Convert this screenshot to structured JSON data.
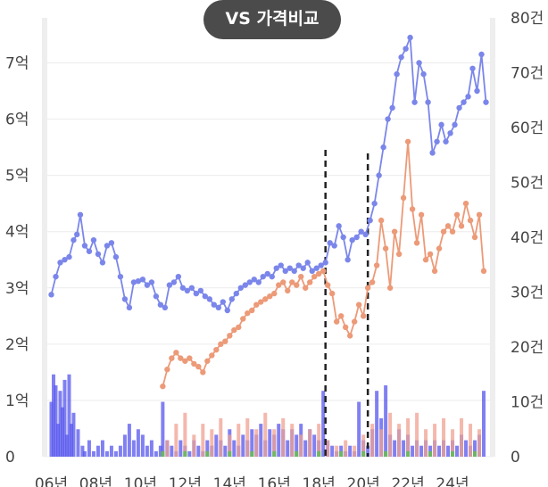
{
  "chart_data": {
    "type": "line",
    "title": "VS 가격비교",
    "x_tick_labels": [
      "06년",
      "08년",
      "10년",
      "12년",
      "14년",
      "16년",
      "18년",
      "20년",
      "22년",
      "24년"
    ],
    "y_left_tick_labels": [
      "0",
      "1억",
      "2억",
      "3억",
      "4억",
      "5억",
      "6억",
      "7억"
    ],
    "y_right_tick_labels": [
      "0",
      "10건",
      "20건",
      "30건",
      "40건",
      "50건",
      "60건",
      "70건",
      "80건"
    ],
    "y_left_range": [
      0,
      7.8
    ],
    "y_right_range": [
      0,
      80
    ],
    "x_range": [
      2005.7,
      2025.8
    ],
    "grid": true,
    "colors": {
      "blue": "#7b86ea",
      "orange": "#ec9a78",
      "bar_blue": "#5555ee",
      "bar_orange": "#f0a090",
      "bar_green": "#66bb55",
      "marker": "#222222"
    },
    "vertical_markers": [
      2018.3,
      2020.2
    ],
    "series": [
      {
        "kind": "line",
        "color_key": "blue",
        "values": [
          [
            2006.0,
            2.88
          ],
          [
            2006.2,
            3.2
          ],
          [
            2006.4,
            3.45
          ],
          [
            2006.6,
            3.5
          ],
          [
            2006.8,
            3.55
          ],
          [
            2007.0,
            3.85
          ],
          [
            2007.15,
            3.95
          ],
          [
            2007.3,
            4.3
          ],
          [
            2007.5,
            3.75
          ],
          [
            2007.7,
            3.65
          ],
          [
            2007.9,
            3.85
          ],
          [
            2008.1,
            3.6
          ],
          [
            2008.3,
            3.45
          ],
          [
            2008.5,
            3.75
          ],
          [
            2008.7,
            3.8
          ],
          [
            2008.9,
            3.55
          ],
          [
            2009.1,
            3.2
          ],
          [
            2009.3,
            2.8
          ],
          [
            2009.5,
            2.65
          ],
          [
            2009.7,
            3.1
          ],
          [
            2009.9,
            3.12
          ],
          [
            2010.1,
            3.15
          ],
          [
            2010.3,
            3.05
          ],
          [
            2010.5,
            3.1
          ],
          [
            2010.7,
            2.85
          ],
          [
            2010.9,
            2.7
          ],
          [
            2011.1,
            2.65
          ],
          [
            2011.3,
            3.05
          ],
          [
            2011.5,
            3.1
          ],
          [
            2011.7,
            3.2
          ],
          [
            2011.9,
            3.0
          ],
          [
            2012.1,
            2.95
          ],
          [
            2012.3,
            3.0
          ],
          [
            2012.5,
            2.9
          ],
          [
            2012.7,
            2.95
          ],
          [
            2012.9,
            2.85
          ],
          [
            2013.1,
            2.8
          ],
          [
            2013.3,
            2.7
          ],
          [
            2013.5,
            2.65
          ],
          [
            2013.7,
            2.75
          ],
          [
            2013.9,
            2.6
          ],
          [
            2014.1,
            2.8
          ],
          [
            2014.3,
            2.9
          ],
          [
            2014.5,
            3.0
          ],
          [
            2014.7,
            3.05
          ],
          [
            2014.9,
            3.1
          ],
          [
            2015.1,
            3.15
          ],
          [
            2015.3,
            3.1
          ],
          [
            2015.5,
            3.2
          ],
          [
            2015.7,
            3.25
          ],
          [
            2015.9,
            3.2
          ],
          [
            2016.1,
            3.35
          ],
          [
            2016.3,
            3.4
          ],
          [
            2016.5,
            3.3
          ],
          [
            2016.7,
            3.35
          ],
          [
            2016.9,
            3.3
          ],
          [
            2017.1,
            3.4
          ],
          [
            2017.3,
            3.35
          ],
          [
            2017.5,
            3.45
          ],
          [
            2017.7,
            3.3
          ],
          [
            2017.9,
            3.35
          ],
          [
            2018.1,
            3.4
          ],
          [
            2018.3,
            3.45
          ],
          [
            2018.5,
            3.8
          ],
          [
            2018.7,
            3.75
          ],
          [
            2018.9,
            4.1
          ],
          [
            2019.1,
            3.9
          ],
          [
            2019.3,
            3.5
          ],
          [
            2019.5,
            3.85
          ],
          [
            2019.7,
            3.9
          ],
          [
            2019.9,
            4.0
          ],
          [
            2020.1,
            3.95
          ],
          [
            2020.3,
            4.2
          ],
          [
            2020.5,
            4.5
          ],
          [
            2020.7,
            5.0
          ],
          [
            2020.9,
            5.5
          ],
          [
            2021.1,
            6.0
          ],
          [
            2021.3,
            6.2
          ],
          [
            2021.5,
            6.8
          ],
          [
            2021.7,
            7.1
          ],
          [
            2021.9,
            7.25
          ],
          [
            2022.1,
            7.45
          ],
          [
            2022.3,
            6.3
          ],
          [
            2022.5,
            7.0
          ],
          [
            2022.7,
            6.8
          ],
          [
            2022.9,
            6.3
          ],
          [
            2023.1,
            5.4
          ],
          [
            2023.3,
            5.6
          ],
          [
            2023.5,
            5.9
          ],
          [
            2023.7,
            5.6
          ],
          [
            2023.9,
            5.75
          ],
          [
            2024.1,
            5.9
          ],
          [
            2024.3,
            6.2
          ],
          [
            2024.5,
            6.3
          ],
          [
            2024.7,
            6.4
          ],
          [
            2024.9,
            6.9
          ],
          [
            2025.1,
            6.5
          ],
          [
            2025.3,
            7.15
          ],
          [
            2025.5,
            6.3
          ]
        ]
      },
      {
        "kind": "line",
        "color_key": "orange",
        "values": [
          [
            2011.0,
            1.25
          ],
          [
            2011.2,
            1.55
          ],
          [
            2011.4,
            1.75
          ],
          [
            2011.6,
            1.85
          ],
          [
            2011.8,
            1.75
          ],
          [
            2012.0,
            1.7
          ],
          [
            2012.2,
            1.75
          ],
          [
            2012.4,
            1.65
          ],
          [
            2012.6,
            1.6
          ],
          [
            2012.8,
            1.5
          ],
          [
            2013.0,
            1.7
          ],
          [
            2013.2,
            1.8
          ],
          [
            2013.4,
            1.9
          ],
          [
            2013.6,
            2.0
          ],
          [
            2013.8,
            2.05
          ],
          [
            2014.0,
            2.15
          ],
          [
            2014.2,
            2.25
          ],
          [
            2014.4,
            2.3
          ],
          [
            2014.6,
            2.45
          ],
          [
            2014.8,
            2.55
          ],
          [
            2015.0,
            2.6
          ],
          [
            2015.2,
            2.7
          ],
          [
            2015.4,
            2.75
          ],
          [
            2015.6,
            2.8
          ],
          [
            2015.8,
            2.85
          ],
          [
            2016.0,
            2.9
          ],
          [
            2016.2,
            3.05
          ],
          [
            2016.4,
            3.1
          ],
          [
            2016.6,
            2.95
          ],
          [
            2016.8,
            3.1
          ],
          [
            2017.0,
            3.05
          ],
          [
            2017.2,
            3.2
          ],
          [
            2017.4,
            3.0
          ],
          [
            2017.6,
            3.1
          ],
          [
            2017.8,
            3.2
          ],
          [
            2018.0,
            3.25
          ],
          [
            2018.2,
            3.3
          ],
          [
            2018.4,
            3.05
          ],
          [
            2018.6,
            2.9
          ],
          [
            2018.8,
            2.4
          ],
          [
            2019.0,
            2.5
          ],
          [
            2019.2,
            2.3
          ],
          [
            2019.4,
            2.15
          ],
          [
            2019.6,
            2.4
          ],
          [
            2019.8,
            2.7
          ],
          [
            2020.0,
            2.5
          ],
          [
            2020.2,
            3.0
          ],
          [
            2020.4,
            3.1
          ],
          [
            2020.6,
            3.4
          ],
          [
            2020.8,
            4.2
          ],
          [
            2021.0,
            3.7
          ],
          [
            2021.2,
            3.0
          ],
          [
            2021.4,
            4.0
          ],
          [
            2021.6,
            3.6
          ],
          [
            2021.8,
            4.6
          ],
          [
            2022.0,
            5.6
          ],
          [
            2022.2,
            4.4
          ],
          [
            2022.4,
            3.8
          ],
          [
            2022.6,
            4.3
          ],
          [
            2022.8,
            3.5
          ],
          [
            2023.0,
            3.6
          ],
          [
            2023.2,
            3.3
          ],
          [
            2023.4,
            3.7
          ],
          [
            2023.6,
            4.0
          ],
          [
            2023.8,
            4.1
          ],
          [
            2024.0,
            4.0
          ],
          [
            2024.2,
            4.3
          ],
          [
            2024.4,
            4.1
          ],
          [
            2024.6,
            4.5
          ],
          [
            2024.8,
            4.2
          ],
          [
            2025.0,
            3.9
          ],
          [
            2025.2,
            4.3
          ],
          [
            2025.4,
            3.3
          ]
        ]
      }
    ],
    "volume_bars": {
      "blue": [
        [
          2006.0,
          10
        ],
        [
          2006.1,
          15
        ],
        [
          2006.2,
          13
        ],
        [
          2006.3,
          6
        ],
        [
          2006.4,
          12
        ],
        [
          2006.5,
          9
        ],
        [
          2006.6,
          14
        ],
        [
          2006.7,
          4
        ],
        [
          2006.8,
          15
        ],
        [
          2006.9,
          6
        ],
        [
          2007.0,
          8
        ],
        [
          2007.2,
          5
        ],
        [
          2007.4,
          2
        ],
        [
          2007.5,
          1
        ],
        [
          2007.7,
          3
        ],
        [
          2007.9,
          1
        ],
        [
          2008.1,
          2
        ],
        [
          2008.3,
          3
        ],
        [
          2008.5,
          1
        ],
        [
          2008.7,
          2
        ],
        [
          2008.9,
          1
        ],
        [
          2009.1,
          2
        ],
        [
          2009.3,
          4
        ],
        [
          2009.5,
          6
        ],
        [
          2009.7,
          3
        ],
        [
          2009.9,
          5
        ],
        [
          2010.1,
          4
        ],
        [
          2010.3,
          2
        ],
        [
          2010.5,
          3
        ],
        [
          2010.7,
          1
        ],
        [
          2010.9,
          2
        ],
        [
          2011.0,
          10
        ],
        [
          2011.2,
          3
        ],
        [
          2011.4,
          2
        ],
        [
          2011.6,
          1
        ],
        [
          2011.8,
          3
        ],
        [
          2012.0,
          2
        ],
        [
          2012.2,
          1
        ],
        [
          2012.4,
          3
        ],
        [
          2012.6,
          2
        ],
        [
          2012.8,
          1
        ],
        [
          2013.0,
          3
        ],
        [
          2013.2,
          2
        ],
        [
          2013.4,
          4
        ],
        [
          2013.6,
          3
        ],
        [
          2013.8,
          2
        ],
        [
          2014.0,
          5
        ],
        [
          2014.2,
          3
        ],
        [
          2014.4,
          2
        ],
        [
          2014.6,
          4
        ],
        [
          2014.8,
          3
        ],
        [
          2015.0,
          5
        ],
        [
          2015.2,
          4
        ],
        [
          2015.4,
          6
        ],
        [
          2015.6,
          3
        ],
        [
          2015.8,
          5
        ],
        [
          2016.0,
          4
        ],
        [
          2016.2,
          6
        ],
        [
          2016.4,
          5
        ],
        [
          2016.6,
          3
        ],
        [
          2016.8,
          5
        ],
        [
          2017.0,
          4
        ],
        [
          2017.2,
          6
        ],
        [
          2017.4,
          3
        ],
        [
          2017.6,
          5
        ],
        [
          2017.8,
          4
        ],
        [
          2018.0,
          3
        ],
        [
          2018.2,
          12
        ],
        [
          2018.4,
          3
        ],
        [
          2018.6,
          2
        ],
        [
          2018.8,
          1
        ],
        [
          2019.0,
          2
        ],
        [
          2019.2,
          1
        ],
        [
          2019.4,
          2
        ],
        [
          2019.6,
          1
        ],
        [
          2019.8,
          10
        ],
        [
          2020.0,
          3
        ],
        [
          2020.2,
          2
        ],
        [
          2020.4,
          5
        ],
        [
          2020.6,
          12
        ],
        [
          2020.8,
          7
        ],
        [
          2021.0,
          13
        ],
        [
          2021.2,
          4
        ],
        [
          2021.4,
          3
        ],
        [
          2021.6,
          5
        ],
        [
          2021.8,
          3
        ],
        [
          2022.0,
          4
        ],
        [
          2022.2,
          2
        ],
        [
          2022.4,
          3
        ],
        [
          2022.6,
          2
        ],
        [
          2022.8,
          3
        ],
        [
          2023.0,
          2
        ],
        [
          2023.2,
          3
        ],
        [
          2023.4,
          2
        ],
        [
          2023.6,
          3
        ],
        [
          2023.8,
          2
        ],
        [
          2024.0,
          3
        ],
        [
          2024.2,
          2
        ],
        [
          2024.4,
          4
        ],
        [
          2024.6,
          3
        ],
        [
          2024.8,
          2
        ],
        [
          2025.0,
          3
        ],
        [
          2025.2,
          4
        ],
        [
          2025.4,
          12
        ]
      ],
      "orange": [
        [
          2011.2,
          3
        ],
        [
          2011.6,
          6
        ],
        [
          2012.0,
          8
        ],
        [
          2012.4,
          4
        ],
        [
          2012.8,
          6
        ],
        [
          2013.2,
          5
        ],
        [
          2013.6,
          7
        ],
        [
          2014.0,
          4
        ],
        [
          2014.4,
          6
        ],
        [
          2014.8,
          7
        ],
        [
          2015.2,
          5
        ],
        [
          2015.6,
          8
        ],
        [
          2016.0,
          5
        ],
        [
          2016.4,
          7
        ],
        [
          2016.8,
          6
        ],
        [
          2017.2,
          4
        ],
        [
          2017.6,
          5
        ],
        [
          2018.0,
          6
        ],
        [
          2018.4,
          3
        ],
        [
          2018.8,
          2
        ],
        [
          2019.2,
          3
        ],
        [
          2019.6,
          2
        ],
        [
          2020.0,
          4
        ],
        [
          2020.4,
          6
        ],
        [
          2020.8,
          5
        ],
        [
          2021.2,
          8
        ],
        [
          2021.6,
          6
        ],
        [
          2022.0,
          7
        ],
        [
          2022.4,
          8
        ],
        [
          2022.8,
          5
        ],
        [
          2023.2,
          6
        ],
        [
          2023.6,
          7
        ],
        [
          2024.0,
          5
        ],
        [
          2024.4,
          7
        ],
        [
          2024.8,
          6
        ],
        [
          2025.2,
          5
        ]
      ],
      "green": [
        [
          2011.0,
          1
        ],
        [
          2012.0,
          1
        ],
        [
          2013.0,
          1
        ],
        [
          2014.0,
          1
        ],
        [
          2015.0,
          1
        ],
        [
          2016.0,
          1
        ],
        [
          2017.0,
          1
        ],
        [
          2018.0,
          1
        ],
        [
          2019.0,
          1
        ],
        [
          2020.0,
          1
        ],
        [
          2021.0,
          1
        ],
        [
          2022.0,
          1
        ],
        [
          2023.0,
          1
        ],
        [
          2024.0,
          1
        ],
        [
          2025.0,
          1
        ]
      ]
    }
  }
}
